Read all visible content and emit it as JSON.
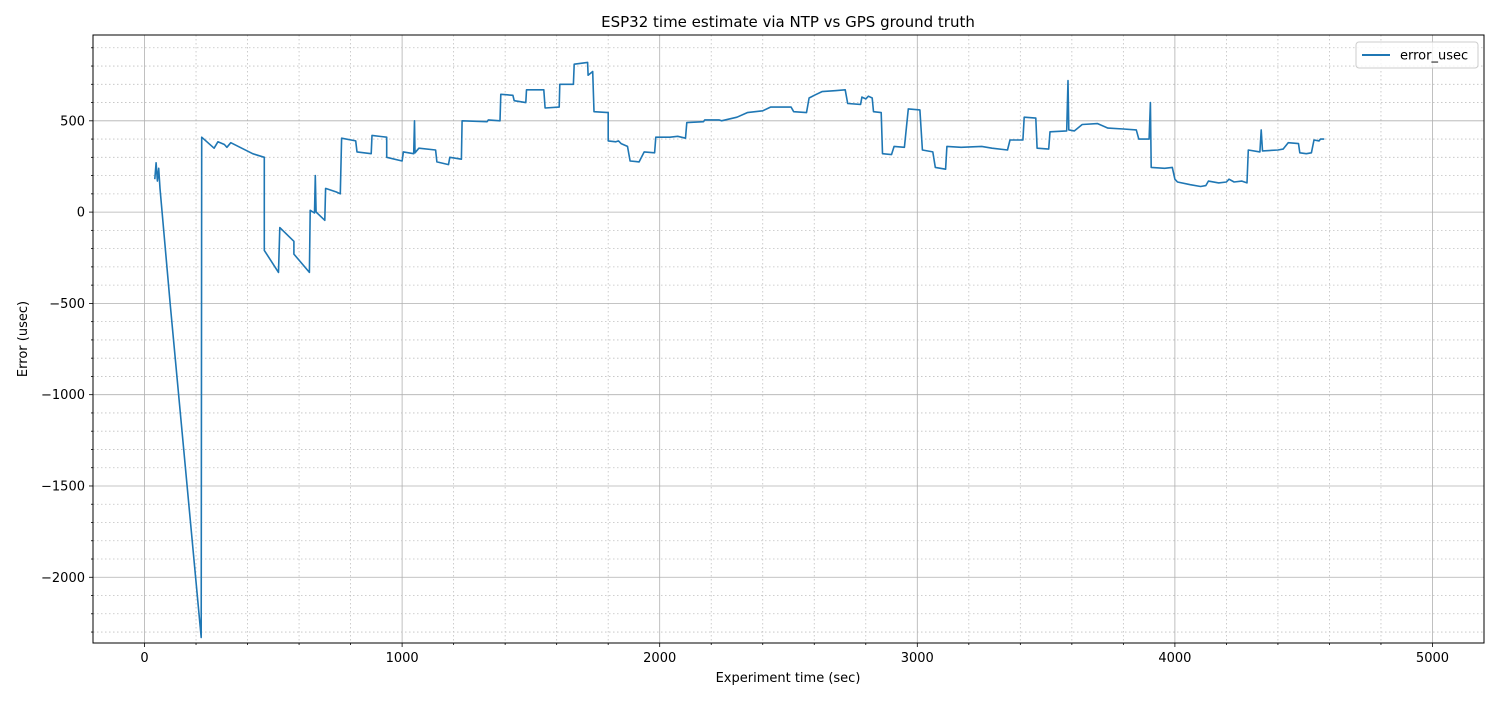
{
  "chart_data": {
    "type": "line",
    "title": "ESP32 time estimate via NTP vs GPS ground truth",
    "xlabel": "Experiment time (sec)",
    "ylabel": "Error (usec)",
    "xlim": [
      -200,
      5200
    ],
    "ylim": [
      -2360,
      970
    ],
    "xticks": [
      0,
      1000,
      2000,
      3000,
      4000,
      5000
    ],
    "xtick_labels": [
      "0",
      "1000",
      "2000",
      "3000",
      "4000",
      "5000"
    ],
    "yticks": [
      -2000,
      -1500,
      -1000,
      -500,
      0,
      500
    ],
    "ytick_labels": [
      "−2000",
      "−1500",
      "−1000",
      "−500",
      "0",
      "500"
    ],
    "grid": "major solid, minor dotted",
    "legend": {
      "position": "top-right"
    },
    "colors": {
      "series": "#1f77b4",
      "major_grid": "#b0b0b0",
      "minor_grid": "#c0c0c0"
    },
    "series": [
      {
        "name": "error_usec",
        "points": [
          [
            40,
            180
          ],
          [
            45,
            270
          ],
          [
            50,
            170
          ],
          [
            55,
            240
          ],
          [
            60,
            130
          ],
          [
            100,
            -510
          ],
          [
            220,
            -2330
          ],
          [
            222,
            410
          ],
          [
            270,
            350
          ],
          [
            285,
            385
          ],
          [
            310,
            370
          ],
          [
            320,
            355
          ],
          [
            335,
            380
          ],
          [
            420,
            320
          ],
          [
            465,
            300
          ],
          [
            465,
            -210
          ],
          [
            520,
            -330
          ],
          [
            525,
            -85
          ],
          [
            580,
            -160
          ],
          [
            580,
            -230
          ],
          [
            640,
            -330
          ],
          [
            643,
            10
          ],
          [
            660,
            -5
          ],
          [
            663,
            200
          ],
          [
            666,
            0
          ],
          [
            700,
            -45
          ],
          [
            703,
            130
          ],
          [
            745,
            110
          ],
          [
            760,
            100
          ],
          [
            765,
            405
          ],
          [
            820,
            390
          ],
          [
            825,
            330
          ],
          [
            880,
            320
          ],
          [
            883,
            420
          ],
          [
            940,
            410
          ],
          [
            940,
            300
          ],
          [
            1000,
            280
          ],
          [
            1005,
            330
          ],
          [
            1045,
            320
          ],
          [
            1048,
            500
          ],
          [
            1050,
            325
          ],
          [
            1065,
            350
          ],
          [
            1130,
            340
          ],
          [
            1135,
            275
          ],
          [
            1180,
            260
          ],
          [
            1185,
            300
          ],
          [
            1230,
            290
          ],
          [
            1233,
            500
          ],
          [
            1330,
            495
          ],
          [
            1335,
            505
          ],
          [
            1380,
            500
          ],
          [
            1383,
            645
          ],
          [
            1430,
            640
          ],
          [
            1435,
            610
          ],
          [
            1480,
            600
          ],
          [
            1483,
            670
          ],
          [
            1550,
            670
          ],
          [
            1555,
            570
          ],
          [
            1610,
            575
          ],
          [
            1612,
            700
          ],
          [
            1665,
            700
          ],
          [
            1668,
            810
          ],
          [
            1720,
            820
          ],
          [
            1722,
            750
          ],
          [
            1740,
            770
          ],
          [
            1745,
            550
          ],
          [
            1800,
            545
          ],
          [
            1800,
            390
          ],
          [
            1830,
            385
          ],
          [
            1840,
            390
          ],
          [
            1850,
            375
          ],
          [
            1875,
            360
          ],
          [
            1885,
            280
          ],
          [
            1920,
            275
          ],
          [
            1940,
            330
          ],
          [
            1980,
            325
          ],
          [
            1985,
            410
          ],
          [
            2040,
            410
          ],
          [
            2070,
            415
          ],
          [
            2100,
            405
          ],
          [
            2105,
            490
          ],
          [
            2170,
            495
          ],
          [
            2175,
            505
          ],
          [
            2230,
            505
          ],
          [
            2240,
            500
          ],
          [
            2300,
            520
          ],
          [
            2340,
            545
          ],
          [
            2400,
            555
          ],
          [
            2430,
            575
          ],
          [
            2470,
            575
          ],
          [
            2510,
            575
          ],
          [
            2520,
            550
          ],
          [
            2570,
            545
          ],
          [
            2580,
            625
          ],
          [
            2600,
            640
          ],
          [
            2630,
            660
          ],
          [
            2680,
            665
          ],
          [
            2720,
            670
          ],
          [
            2730,
            595
          ],
          [
            2780,
            590
          ],
          [
            2785,
            630
          ],
          [
            2800,
            620
          ],
          [
            2810,
            635
          ],
          [
            2825,
            625
          ],
          [
            2830,
            550
          ],
          [
            2860,
            545
          ],
          [
            2865,
            320
          ],
          [
            2900,
            315
          ],
          [
            2910,
            360
          ],
          [
            2950,
            355
          ],
          [
            2965,
            565
          ],
          [
            3010,
            560
          ],
          [
            3020,
            340
          ],
          [
            3060,
            330
          ],
          [
            3070,
            245
          ],
          [
            3110,
            235
          ],
          [
            3115,
            360
          ],
          [
            3170,
            355
          ],
          [
            3250,
            360
          ],
          [
            3290,
            350
          ],
          [
            3350,
            340
          ],
          [
            3360,
            395
          ],
          [
            3410,
            395
          ],
          [
            3415,
            520
          ],
          [
            3460,
            515
          ],
          [
            3465,
            350
          ],
          [
            3510,
            345
          ],
          [
            3515,
            440
          ],
          [
            3580,
            445
          ],
          [
            3585,
            720
          ],
          [
            3588,
            450
          ],
          [
            3610,
            445
          ],
          [
            3640,
            480
          ],
          [
            3700,
            485
          ],
          [
            3740,
            460
          ],
          [
            3800,
            455
          ],
          [
            3850,
            450
          ],
          [
            3860,
            400
          ],
          [
            3900,
            400
          ],
          [
            3905,
            600
          ],
          [
            3908,
            245
          ],
          [
            3960,
            240
          ],
          [
            3990,
            245
          ],
          [
            4000,
            180
          ],
          [
            4010,
            165
          ],
          [
            4060,
            150
          ],
          [
            4100,
            140
          ],
          [
            4120,
            145
          ],
          [
            4130,
            170
          ],
          [
            4170,
            160
          ],
          [
            4200,
            165
          ],
          [
            4210,
            180
          ],
          [
            4230,
            165
          ],
          [
            4260,
            170
          ],
          [
            4280,
            160
          ],
          [
            4285,
            340
          ],
          [
            4330,
            330
          ],
          [
            4335,
            450
          ],
          [
            4340,
            335
          ],
          [
            4400,
            340
          ],
          [
            4420,
            345
          ],
          [
            4440,
            380
          ],
          [
            4480,
            375
          ],
          [
            4485,
            325
          ],
          [
            4510,
            320
          ],
          [
            4530,
            325
          ],
          [
            4540,
            395
          ],
          [
            4560,
            390
          ],
          [
            4565,
            400
          ],
          [
            4580,
            400
          ]
        ]
      }
    ]
  }
}
